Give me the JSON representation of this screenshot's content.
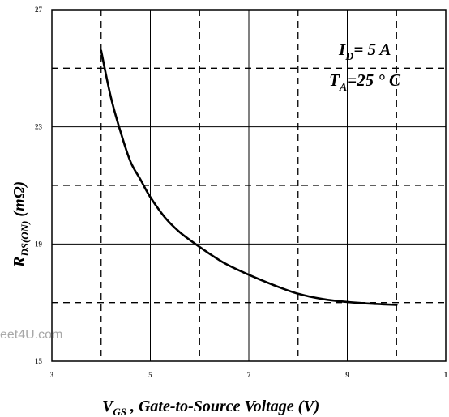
{
  "chart_data": {
    "type": "line",
    "title": "",
    "xlabel": {
      "main": "V",
      "sub": "GS",
      "rest": " , Gate-to-Source Voltage (V)"
    },
    "ylabel": {
      "main": "R",
      "sub": "DS(ON)",
      "rest": " (mΩ)"
    },
    "xlim": [
      3,
      11
    ],
    "ylim": [
      15,
      27
    ],
    "xticks": [
      "3",
      "5",
      "7",
      "9",
      "1"
    ],
    "yticks": [
      "15",
      "19",
      "23",
      "27"
    ],
    "grid": true,
    "annotations": [
      {
        "id": "id",
        "main": "I",
        "sub": "D",
        "rest": "= 5 A"
      },
      {
        "id": "ta",
        "main": "T",
        "sub": "A",
        "rest": "=25 ° C"
      }
    ],
    "series": [
      {
        "name": "",
        "x": [
          4.0,
          4.2,
          4.4,
          4.6,
          4.8,
          5.0,
          5.3,
          5.6,
          6.0,
          6.5,
          7.0,
          7.5,
          8.0,
          8.5,
          9.0,
          9.5,
          10.0
        ],
        "y": [
          25.6,
          24.0,
          22.8,
          21.8,
          21.2,
          20.6,
          19.9,
          19.4,
          18.9,
          18.35,
          17.95,
          17.6,
          17.3,
          17.12,
          17.02,
          16.96,
          16.92
        ]
      }
    ]
  },
  "watermark": "eet4U.com"
}
